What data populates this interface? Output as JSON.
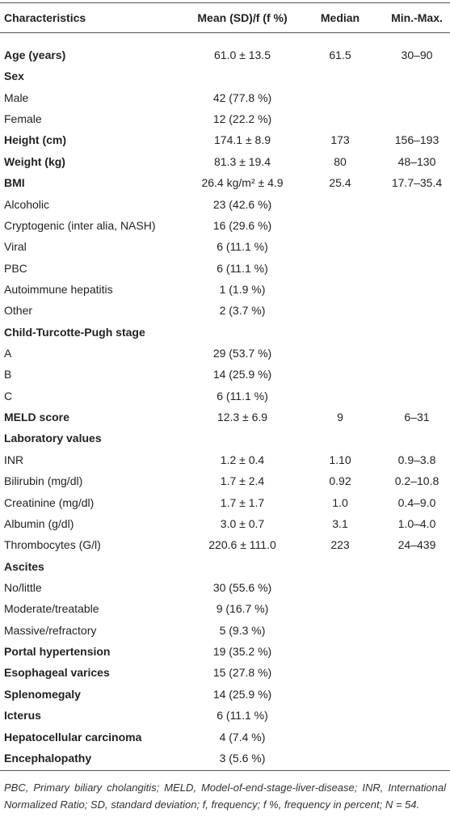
{
  "table": {
    "header": [
      "Characteristics",
      "Mean (SD)/f (f %)",
      "Median",
      "Min.-Max."
    ],
    "rows": [
      [
        "Age (years)",
        "61.0 ± 13.5",
        "61.5",
        "30–90"
      ],
      [
        "Sex"
      ],
      [
        "Male",
        "42 (77.8 %)"
      ],
      [
        "Female",
        "12 (22.2 %)"
      ],
      [
        "Height (cm)",
        "174.1 ± 8.9",
        "173",
        "156–193"
      ],
      [
        "Weight (kg)",
        "81.3 ± 19.4",
        "80",
        "48–130"
      ],
      [
        "BMI",
        "26.4 kg/m² ± 4.9",
        "25.4",
        "17.7–35.4"
      ],
      [
        "Alcoholic",
        "23 (42.6 %)"
      ],
      [
        "Cryptogenic (inter alia, NASH)",
        "16 (29.6 %)"
      ],
      [
        "Viral",
        "6 (11.1 %)"
      ],
      [
        "PBC",
        "6 (11.1 %)"
      ],
      [
        "Autoimmune hepatitis",
        "1 (1.9 %)"
      ],
      [
        "Other",
        "2 (3.7 %)"
      ],
      [
        "Child-Turcotte-Pugh stage"
      ],
      [
        "A",
        "29 (53.7 %)"
      ],
      [
        "B",
        "14 (25.9 %)"
      ],
      [
        "C",
        "6 (11.1 %)"
      ],
      [
        "MELD score",
        "12.3 ± 6.9",
        "9",
        "6–31"
      ],
      [
        "Laboratory values"
      ],
      [
        "INR",
        "1.2 ± 0.4",
        "1.10",
        "0.9–3.8"
      ],
      [
        "Bilirubin (mg/dl)",
        "1.7 ± 2.4",
        "0.92",
        "0.2–10.8"
      ],
      [
        "Creatinine (mg/dl)",
        "1.7 ± 1.7",
        "1.0",
        "0.4–9.0"
      ],
      [
        "Albumin (g/dl)",
        "3.0 ± 0.7",
        "3.1",
        "1.0–4.0"
      ],
      [
        "Thrombocytes (G/l)",
        "220.6 ± 111.0",
        "223",
        "24–439"
      ],
      [
        "Ascites"
      ],
      [
        "No/little",
        "30 (55.6 %)"
      ],
      [
        "Moderate/treatable",
        "9 (16.7 %)"
      ],
      [
        "Massive/refractory",
        "5 (9.3 %)"
      ],
      [
        "Portal hypertension",
        "19 (35.2 %)"
      ],
      [
        "Esophageal varices",
        "15 (27.8 %)"
      ],
      [
        "Splenomegaly",
        "14 (25.9 %)"
      ],
      [
        "Icterus",
        "6 (11.1 %)"
      ],
      [
        "Hepatocellular carcinoma",
        "4 (7.4 %)"
      ],
      [
        "Encephalopathy",
        "3 (5.6 %)"
      ]
    ]
  },
  "footnote": "PBC, Primary biliary cholangitis; MELD, Model-of-end-stage-liver-disease; INR, International Normalized Ratio; SD, standard deviation; f, frequency; f %, frequency in percent; N = 54."
}
